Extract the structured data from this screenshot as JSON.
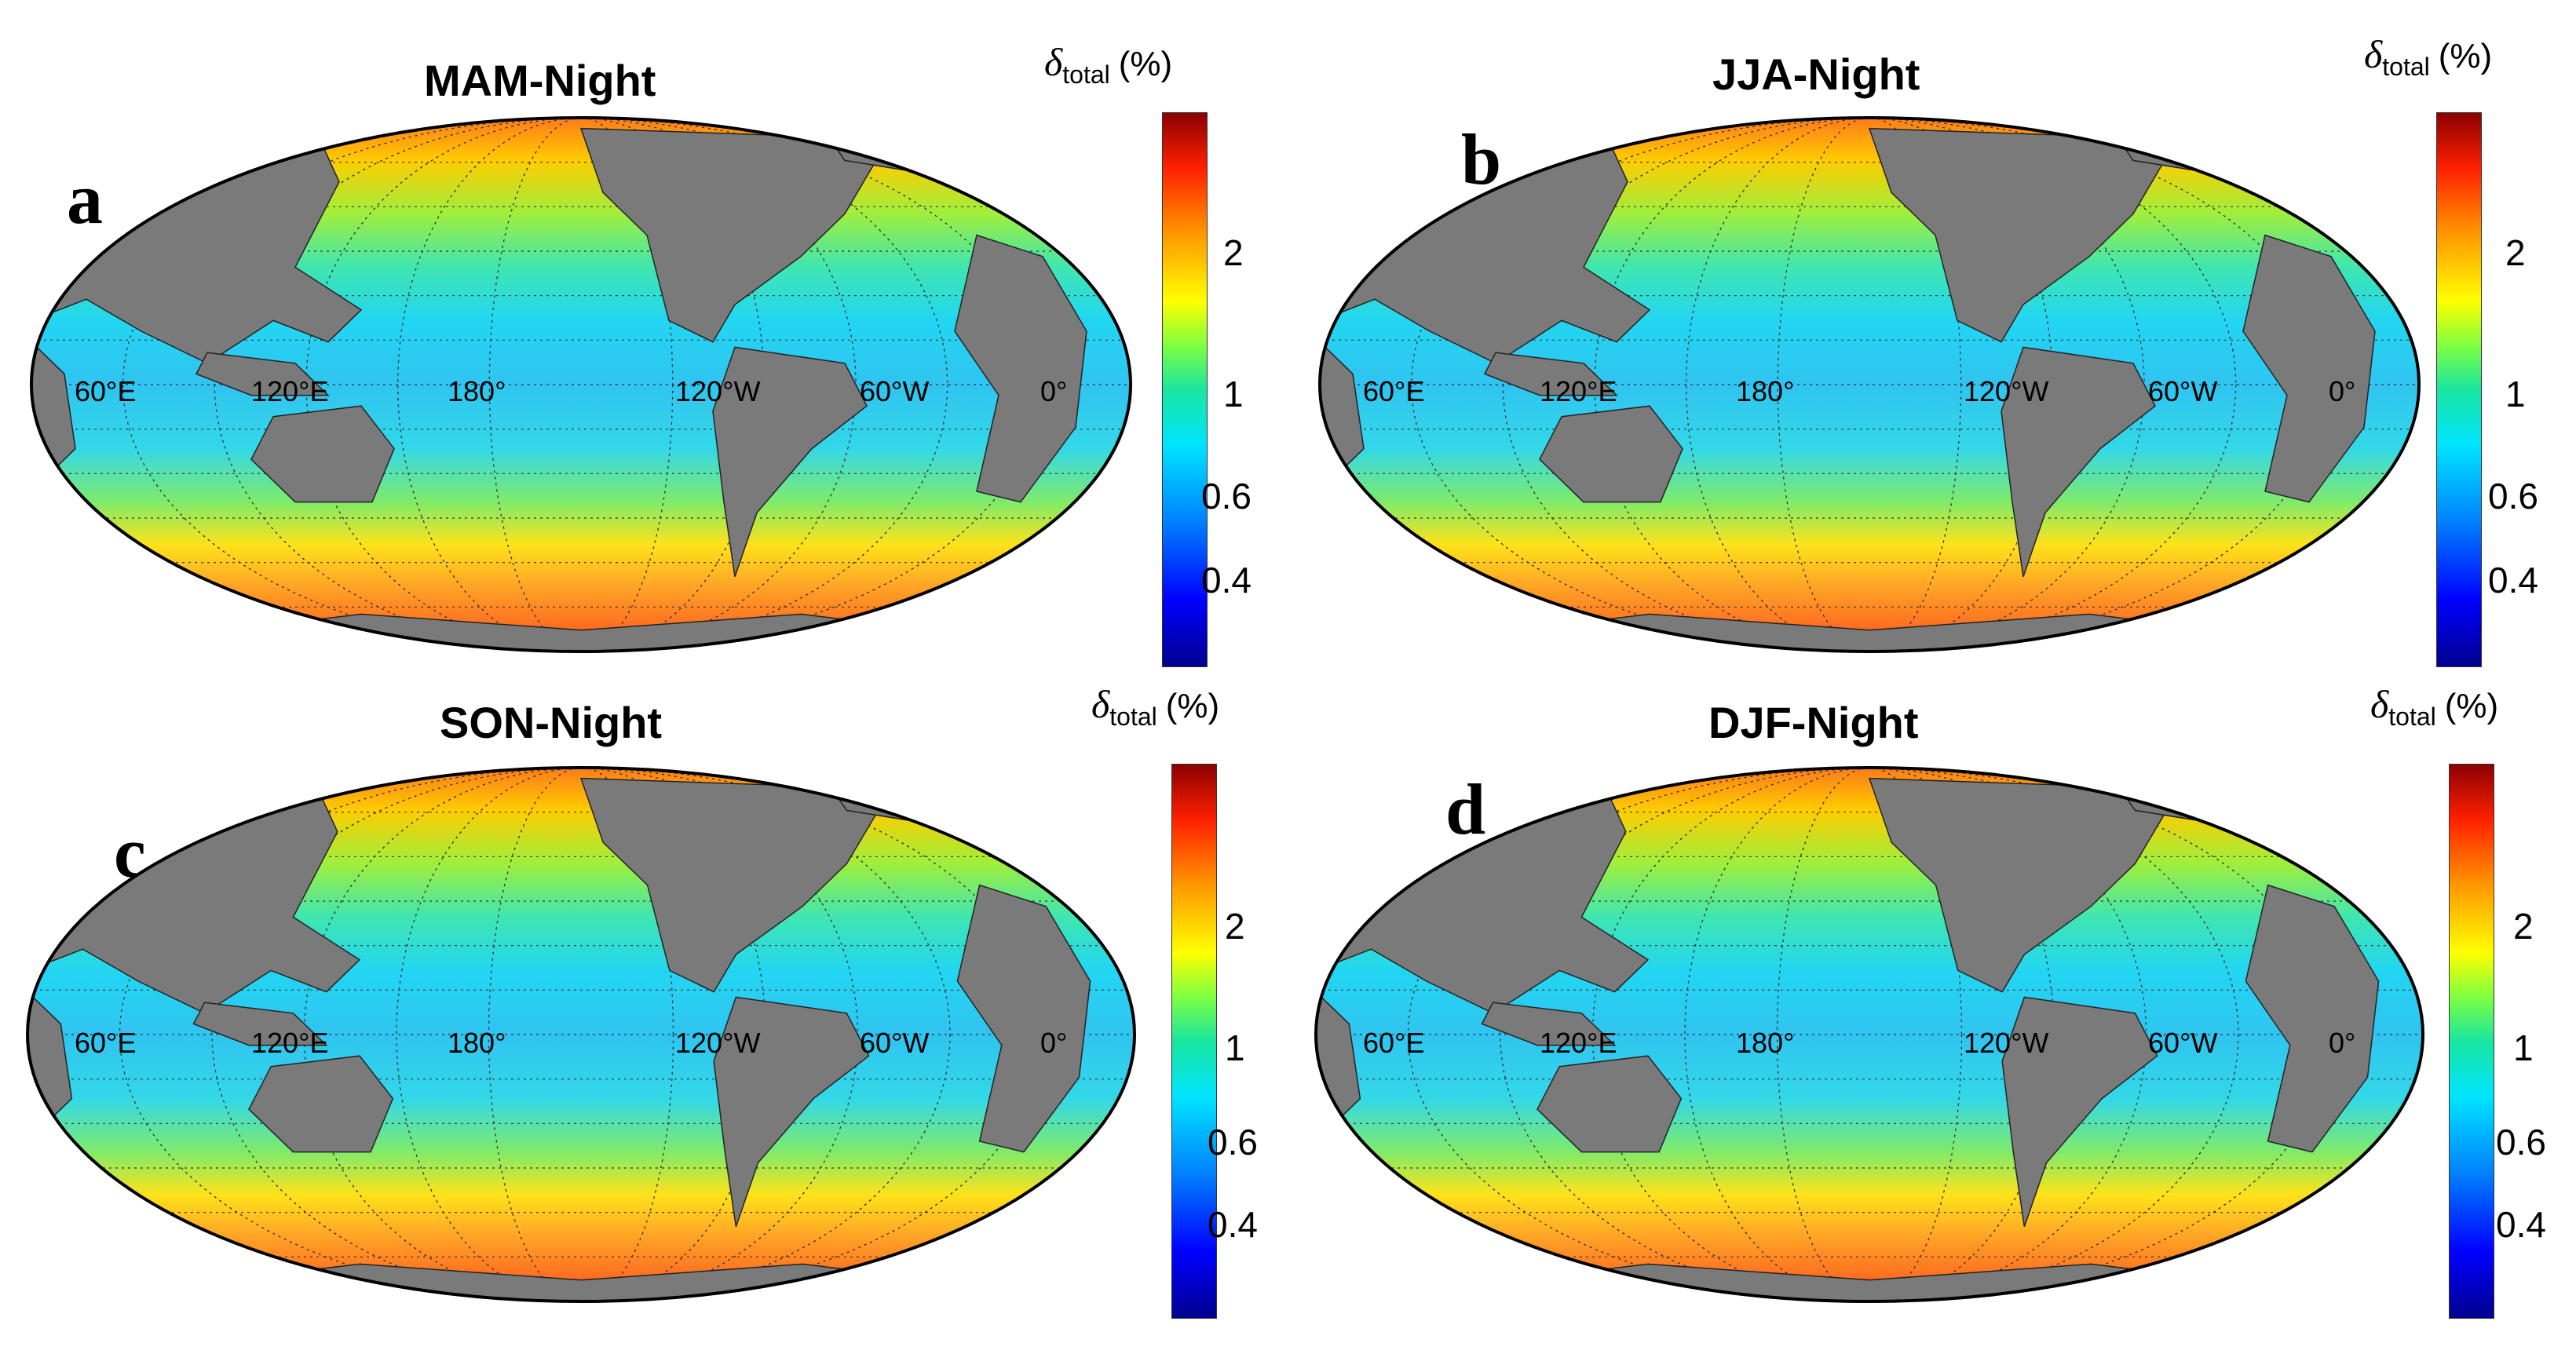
{
  "colorbar": {
    "symbol": "δ",
    "subscript": "total",
    "unit": "(%)",
    "ticks": [
      "2",
      "1",
      "0.6",
      "0.4"
    ],
    "colors": [
      "#00008f",
      "#0000ff",
      "#0080ff",
      "#00e5ff",
      "#19e6a0",
      "#7fff40",
      "#ffff00",
      "#ff9900",
      "#ff2000",
      "#8b0000"
    ]
  },
  "longitude_labels": [
    "60°E",
    "120°E",
    "180°",
    "120°W",
    "60°W",
    "0°"
  ],
  "land_color": "#7a7a7a",
  "panels": [
    {
      "letter": "a",
      "title": "MAM-Night"
    },
    {
      "letter": "b",
      "title": "JJA-Night"
    },
    {
      "letter": "c",
      "title": "SON-Night"
    },
    {
      "letter": "d",
      "title": "DJF-Night"
    }
  ]
}
